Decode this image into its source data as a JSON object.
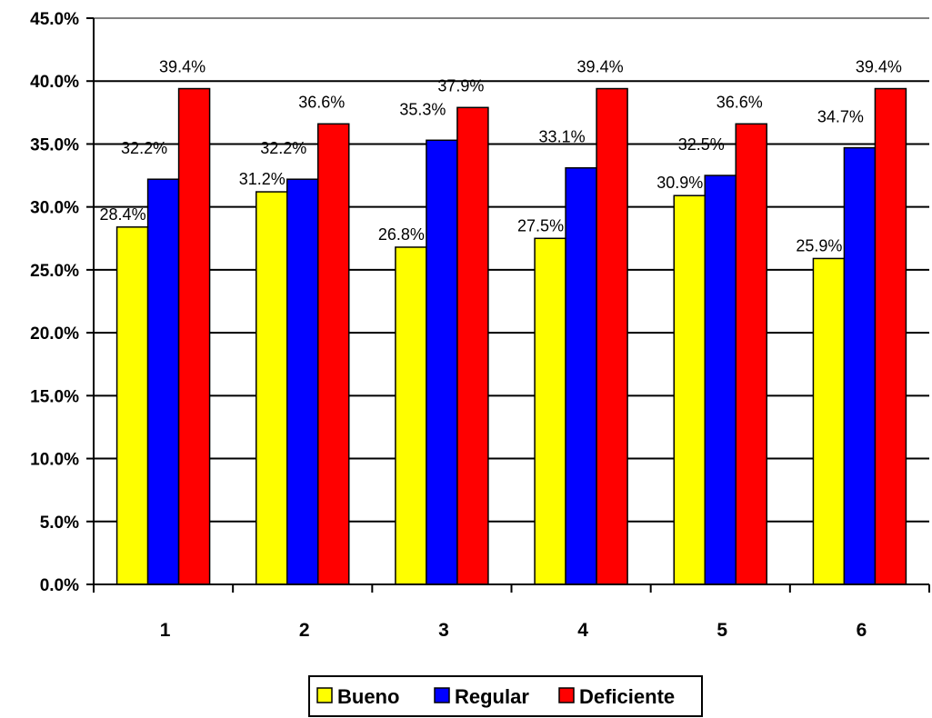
{
  "chart_data": {
    "type": "bar",
    "categories": [
      "1",
      "2",
      "3",
      "4",
      "5",
      "6"
    ],
    "series": [
      {
        "name": "Bueno",
        "color": "#FFFF00",
        "values": [
          28.4,
          31.2,
          26.8,
          27.5,
          30.9,
          25.9
        ]
      },
      {
        "name": "Regular",
        "color": "#0000FF",
        "values": [
          32.2,
          32.2,
          35.3,
          33.1,
          32.5,
          34.7
        ]
      },
      {
        "name": "Deficiente",
        "color": "#FF0000",
        "values": [
          39.4,
          36.6,
          37.9,
          39.4,
          36.6,
          39.4
        ]
      }
    ],
    "yticks": [
      "0.0%",
      "5.0%",
      "10.0%",
      "15.0%",
      "20.0%",
      "25.0%",
      "30.0%",
      "35.0%",
      "40.0%",
      "45.0%"
    ],
    "ylim": [
      0,
      45
    ],
    "value_suffix": "%",
    "grid": true,
    "legend_position": "bottom",
    "title": "",
    "xlabel": "",
    "ylabel": ""
  }
}
